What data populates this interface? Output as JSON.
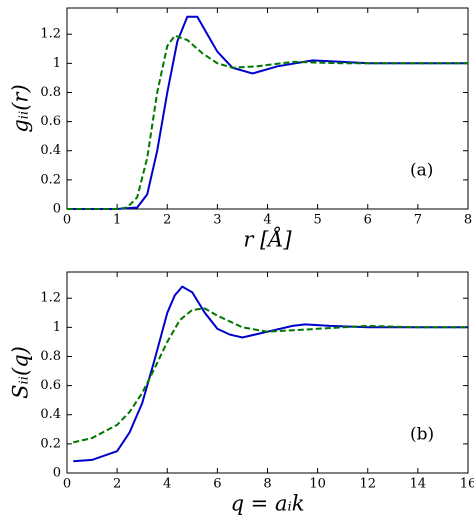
{
  "chart_data": [
    {
      "type": "line",
      "xlabel": "r [Å]",
      "ylabel": "gᵢᵢ(r)",
      "annotation": "(a)",
      "xlim": [
        0,
        8
      ],
      "ylim": [
        0,
        1.38
      ],
      "xticks": [
        0,
        1,
        2,
        3,
        4,
        5,
        6,
        7,
        8
      ],
      "yticks": [
        0,
        0.2,
        0.4,
        0.6,
        0.8,
        1,
        1.2
      ],
      "series": [
        {
          "color": "#0000cc",
          "style": "solid",
          "x": [
            0,
            1,
            1.4,
            1.6,
            1.8,
            2.0,
            2.2,
            2.4,
            2.6,
            2.8,
            3.0,
            3.3,
            3.7,
            4.2,
            4.9,
            5.5,
            6,
            7,
            8
          ],
          "values": [
            0,
            0,
            0.01,
            0.1,
            0.4,
            0.8,
            1.15,
            1.32,
            1.32,
            1.2,
            1.08,
            0.97,
            0.93,
            0.98,
            1.02,
            1.01,
            1.0,
            1.0,
            1.0
          ]
        },
        {
          "color": "#007700",
          "style": "dashed",
          "x": [
            0,
            1,
            1.2,
            1.4,
            1.6,
            1.8,
            2.0,
            2.15,
            2.4,
            2.7,
            3.0,
            3.3,
            3.8,
            4.5,
            5.5,
            6,
            7,
            8
          ],
          "values": [
            0,
            0,
            0.01,
            0.08,
            0.35,
            0.8,
            1.12,
            1.19,
            1.16,
            1.07,
            1.0,
            0.97,
            0.98,
            1.01,
            1.0,
            1.0,
            1.0,
            1.0
          ]
        }
      ]
    },
    {
      "type": "line",
      "xlabel": "q = aᵢk",
      "ylabel": "Sᵢᵢ(q)",
      "annotation": "(b)",
      "xlim": [
        0,
        16
      ],
      "ylim": [
        0,
        1.38
      ],
      "xticks": [
        0,
        2,
        4,
        6,
        8,
        10,
        12,
        14,
        16
      ],
      "yticks": [
        0,
        0.2,
        0.4,
        0.6,
        0.8,
        1,
        1.2
      ],
      "series": [
        {
          "color": "#0000cc",
          "style": "solid",
          "x": [
            0.25,
            1,
            2,
            2.5,
            3,
            3.5,
            4,
            4.3,
            4.6,
            5,
            5.5,
            6,
            6.5,
            7,
            8,
            9,
            9.5,
            10.5,
            12,
            14,
            16
          ],
          "values": [
            0.08,
            0.09,
            0.15,
            0.28,
            0.48,
            0.78,
            1.1,
            1.22,
            1.28,
            1.24,
            1.1,
            0.99,
            0.95,
            0.93,
            0.97,
            1.01,
            1.02,
            1.01,
            1.0,
            1.0,
            1.0
          ]
        },
        {
          "color": "#007700",
          "style": "dashed",
          "x": [
            0.25,
            1,
            2,
            2.5,
            3,
            3.5,
            4,
            4.5,
            5,
            5.5,
            6,
            7,
            8,
            9,
            10,
            11,
            12,
            14,
            16
          ],
          "values": [
            0.21,
            0.24,
            0.33,
            0.42,
            0.55,
            0.72,
            0.9,
            1.05,
            1.12,
            1.13,
            1.08,
            1.0,
            0.97,
            0.98,
            0.99,
            1.0,
            1.01,
            1.0,
            1.0
          ]
        }
      ]
    }
  ]
}
